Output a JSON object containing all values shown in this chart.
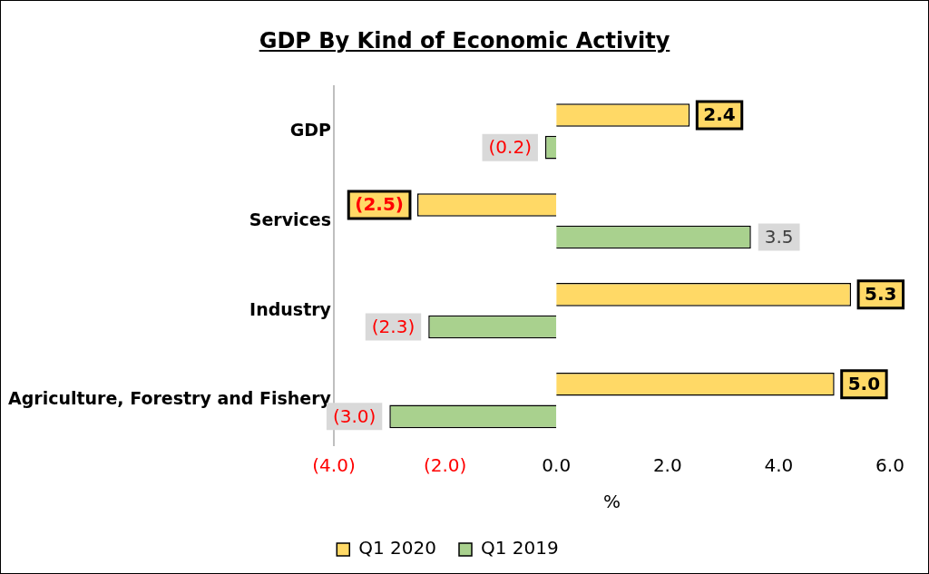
{
  "chart_data": {
    "type": "bar",
    "orientation": "horizontal",
    "title": "GDP By Kind of Economic Activity",
    "xlabel": "%",
    "categories": [
      "GDP",
      "Services",
      "Industry",
      "Agriculture, Forestry and Fishery"
    ],
    "series": [
      {
        "name": "Q1 2020",
        "color": "#ffd966",
        "values": [
          2.4,
          -2.5,
          5.3,
          5.0
        ],
        "value_labels": [
          "2.4",
          "(2.5)",
          "5.3",
          "5.0"
        ]
      },
      {
        "name": "Q1 2019",
        "color": "#a9d18e",
        "values": [
          -0.2,
          3.5,
          -2.3,
          -3.0
        ],
        "value_labels": [
          "(0.2)",
          "3.5",
          "(2.3)",
          "(3.0)"
        ]
      }
    ],
    "xlim": [
      -4,
      6
    ],
    "xticks": [
      {
        "value": -4,
        "label": "(4.0)"
      },
      {
        "value": -2,
        "label": "(2.0)"
      },
      {
        "value": 0,
        "label": "0.0"
      },
      {
        "value": 2,
        "label": "2.0"
      },
      {
        "value": 4,
        "label": "4.0"
      },
      {
        "value": 6,
        "label": "6.0"
      }
    ],
    "grid": false,
    "legend": "bottom"
  }
}
